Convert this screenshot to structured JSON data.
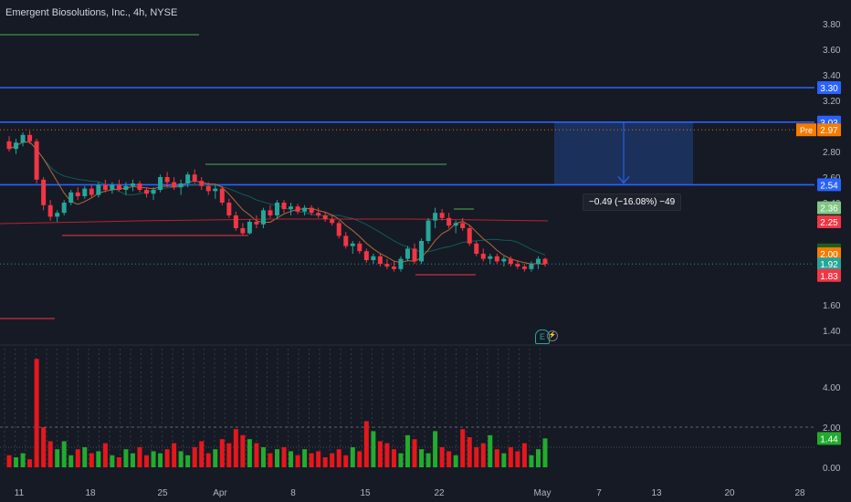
{
  "header": {
    "title": "Emergent Biosolutions, Inc., 4h, NYSE"
  },
  "measure": {
    "label": "−0.49 (−16.08%) −49"
  },
  "earnings_marker": {
    "icon": "earnings-icon",
    "letter": "E"
  },
  "price_axis": {
    "ticks": [
      "3.80",
      "3.60",
      "3.40",
      "3.20",
      "2.80",
      "2.60",
      "2.40",
      "1.60",
      "1.40"
    ],
    "tick_values": [
      3.8,
      3.6,
      3.4,
      3.2,
      2.8,
      2.6,
      2.4,
      1.6,
      1.4
    ],
    "labels": [
      {
        "text": "3.30",
        "value": 3.3,
        "color": "#2962ff"
      },
      {
        "text": "3.03",
        "value": 3.03,
        "color": "#2962ff"
      },
      {
        "text": "2.97",
        "value": 2.97,
        "color": "#f57c00",
        "prefix": "Pre"
      },
      {
        "text": "2.54",
        "value": 2.54,
        "color": "#2962ff"
      },
      {
        "text": "2.36",
        "value": 2.36,
        "color": "#81c784"
      },
      {
        "text": "2.25",
        "value": 2.25,
        "color": "#f23645"
      },
      {
        "text": "2.03",
        "value": 2.03,
        "color": "#1b5e20"
      },
      {
        "text": "2.00",
        "value": 2.0,
        "color": "#f57c00"
      },
      {
        "text": "1.92",
        "value": 1.92,
        "color": "#26a69a"
      },
      {
        "text": "1.83",
        "value": 1.83,
        "color": "#f23645"
      }
    ]
  },
  "volume_axis": {
    "ticks": [
      "4.00",
      "2.00",
      "0.00"
    ],
    "tick_values": [
      4.0,
      2.0,
      0.0
    ],
    "current": {
      "text": "1.44",
      "value": 1.44,
      "color": "#26a69a"
    }
  },
  "time_axis": {
    "labels": [
      "11",
      "18",
      "25",
      "Apr",
      "8",
      "15",
      "22",
      "May",
      "7",
      "13",
      "20",
      "28"
    ]
  },
  "horizontal_levels": [
    {
      "value": 3.3,
      "color": "#2962ff"
    },
    {
      "value": 3.03,
      "color": "#2962ff"
    },
    {
      "value": 2.54,
      "color": "#2962ff"
    }
  ],
  "colors": {
    "up": "#26a69a",
    "down": "#f23645",
    "volume_up": "#22ab2e",
    "volume_down": "#e6171c",
    "background": "#161a25",
    "level": "#2962ff",
    "premarket": "#f57c00"
  },
  "chart_data": {
    "type": "candlestick",
    "x_labels": [
      "11",
      "18",
      "25",
      "Apr",
      "8",
      "15",
      "22",
      "May",
      "7",
      "13",
      "20",
      "28"
    ],
    "ylim": [
      1.3,
      3.85
    ],
    "candles": [
      [
        2.88,
        2.92,
        2.8,
        2.82
      ],
      [
        2.82,
        2.9,
        2.78,
        2.87
      ],
      [
        2.87,
        2.95,
        2.84,
        2.93
      ],
      [
        2.93,
        2.96,
        2.86,
        2.88
      ],
      [
        2.88,
        2.9,
        2.55,
        2.58
      ],
      [
        2.58,
        2.6,
        2.34,
        2.38
      ],
      [
        2.38,
        2.42,
        2.26,
        2.29
      ],
      [
        2.29,
        2.34,
        2.25,
        2.32
      ],
      [
        2.32,
        2.42,
        2.3,
        2.4
      ],
      [
        2.4,
        2.5,
        2.38,
        2.48
      ],
      [
        2.48,
        2.52,
        2.42,
        2.45
      ],
      [
        2.45,
        2.53,
        2.43,
        2.51
      ],
      [
        2.51,
        2.54,
        2.44,
        2.46
      ],
      [
        2.46,
        2.56,
        2.44,
        2.54
      ],
      [
        2.54,
        2.58,
        2.48,
        2.5
      ],
      [
        2.5,
        2.56,
        2.47,
        2.54
      ],
      [
        2.54,
        2.58,
        2.49,
        2.5
      ],
      [
        2.5,
        2.56,
        2.46,
        2.53
      ],
      [
        2.53,
        2.58,
        2.49,
        2.55
      ],
      [
        2.55,
        2.57,
        2.48,
        2.5
      ],
      [
        2.5,
        2.52,
        2.44,
        2.47
      ],
      [
        2.47,
        2.52,
        2.42,
        2.5
      ],
      [
        2.5,
        2.62,
        2.48,
        2.6
      ],
      [
        2.6,
        2.64,
        2.52,
        2.56
      ],
      [
        2.56,
        2.6,
        2.5,
        2.52
      ],
      [
        2.52,
        2.58,
        2.46,
        2.55
      ],
      [
        2.55,
        2.64,
        2.52,
        2.62
      ],
      [
        2.62,
        2.66,
        2.55,
        2.57
      ],
      [
        2.57,
        2.6,
        2.5,
        2.53
      ],
      [
        2.53,
        2.56,
        2.46,
        2.49
      ],
      [
        2.49,
        2.54,
        2.43,
        2.51
      ],
      [
        2.51,
        2.53,
        2.38,
        2.4
      ],
      [
        2.4,
        2.43,
        2.28,
        2.3
      ],
      [
        2.3,
        2.33,
        2.18,
        2.2
      ],
      [
        2.2,
        2.24,
        2.14,
        2.16
      ],
      [
        2.16,
        2.27,
        2.15,
        2.25
      ],
      [
        2.25,
        2.3,
        2.2,
        2.23
      ],
      [
        2.23,
        2.36,
        2.2,
        2.34
      ],
      [
        2.34,
        2.38,
        2.28,
        2.3
      ],
      [
        2.3,
        2.42,
        2.27,
        2.4
      ],
      [
        2.4,
        2.42,
        2.32,
        2.35
      ],
      [
        2.35,
        2.4,
        2.3,
        2.37
      ],
      [
        2.37,
        2.39,
        2.31,
        2.33
      ],
      [
        2.33,
        2.38,
        2.3,
        2.36
      ],
      [
        2.36,
        2.38,
        2.3,
        2.32
      ],
      [
        2.32,
        2.36,
        2.28,
        2.3
      ],
      [
        2.3,
        2.33,
        2.25,
        2.27
      ],
      [
        2.27,
        2.3,
        2.22,
        2.24
      ],
      [
        2.24,
        2.26,
        2.12,
        2.14
      ],
      [
        2.14,
        2.17,
        2.04,
        2.06
      ],
      [
        2.06,
        2.1,
        2.0,
        2.08
      ],
      [
        2.08,
        2.1,
        2.0,
        2.02
      ],
      [
        2.02,
        2.04,
        1.93,
        1.95
      ],
      [
        1.95,
        2.0,
        1.92,
        1.98
      ],
      [
        1.98,
        2.0,
        1.9,
        1.92
      ],
      [
        1.92,
        1.96,
        1.88,
        1.9
      ],
      [
        1.9,
        1.94,
        1.86,
        1.88
      ],
      [
        1.88,
        1.98,
        1.86,
        1.96
      ],
      [
        1.96,
        2.06,
        1.94,
        2.04
      ],
      [
        2.04,
        2.08,
        1.92,
        1.94
      ],
      [
        1.94,
        2.12,
        1.92,
        2.1
      ],
      [
        2.1,
        2.28,
        2.08,
        2.26
      ],
      [
        2.26,
        2.36,
        2.2,
        2.32
      ],
      [
        2.32,
        2.35,
        2.26,
        2.28
      ],
      [
        2.28,
        2.32,
        2.2,
        2.22
      ],
      [
        2.22,
        2.26,
        2.16,
        2.24
      ],
      [
        2.24,
        2.28,
        2.18,
        2.2
      ],
      [
        2.2,
        2.22,
        2.06,
        2.08
      ],
      [
        2.08,
        2.1,
        1.98,
        2.0
      ],
      [
        2.0,
        2.04,
        1.94,
        1.96
      ],
      [
        1.96,
        2.0,
        1.92,
        1.98
      ],
      [
        1.98,
        2.0,
        1.92,
        1.94
      ],
      [
        1.94,
        1.98,
        1.9,
        1.96
      ],
      [
        1.96,
        1.98,
        1.9,
        1.92
      ],
      [
        1.92,
        1.95,
        1.88,
        1.9
      ],
      [
        1.9,
        1.92,
        1.86,
        1.88
      ],
      [
        1.88,
        1.94,
        1.86,
        1.92
      ],
      [
        1.92,
        1.98,
        1.88,
        1.96
      ],
      [
        1.96,
        1.97,
        1.9,
        1.92
      ]
    ],
    "volume": [
      0.6,
      0.5,
      0.7,
      0.4,
      5.4,
      2.0,
      1.3,
      0.9,
      1.3,
      0.6,
      0.9,
      1.0,
      0.7,
      0.8,
      1.2,
      0.6,
      0.5,
      0.9,
      0.7,
      1.0,
      0.6,
      0.8,
      0.7,
      0.9,
      1.2,
      0.8,
      0.6,
      1.0,
      1.3,
      0.7,
      0.9,
      1.4,
      1.2,
      1.9,
      1.6,
      1.4,
      1.2,
      1.0,
      0.7,
      0.9,
      1.0,
      0.8,
      0.6,
      0.9,
      0.7,
      0.8,
      0.5,
      0.7,
      0.9,
      0.6,
      1.0,
      0.8,
      2.3,
      1.8,
      1.3,
      1.2,
      0.9,
      0.7,
      1.6,
      1.4,
      0.9,
      0.7,
      1.8,
      1.0,
      0.8,
      0.6,
      1.9,
      1.5,
      1.0,
      1.2,
      1.6,
      0.9,
      0.7,
      1.0,
      0.8,
      1.2,
      0.6,
      0.9,
      1.44
    ],
    "volume_up": [
      false,
      true,
      true,
      false,
      false,
      false,
      false,
      true,
      true,
      true,
      false,
      true,
      false,
      true,
      false,
      true,
      false,
      true,
      true,
      false,
      false,
      true,
      true,
      false,
      false,
      true,
      true,
      false,
      false,
      false,
      true,
      false,
      false,
      false,
      false,
      true,
      false,
      true,
      false,
      true,
      false,
      true,
      false,
      true,
      false,
      false,
      false,
      false,
      false,
      false,
      true,
      false,
      false,
      true,
      false,
      false,
      false,
      true,
      true,
      false,
      true,
      true,
      true,
      false,
      false,
      true,
      false,
      false,
      false,
      false,
      true,
      false,
      true,
      false,
      false,
      false,
      true,
      true,
      true
    ]
  }
}
